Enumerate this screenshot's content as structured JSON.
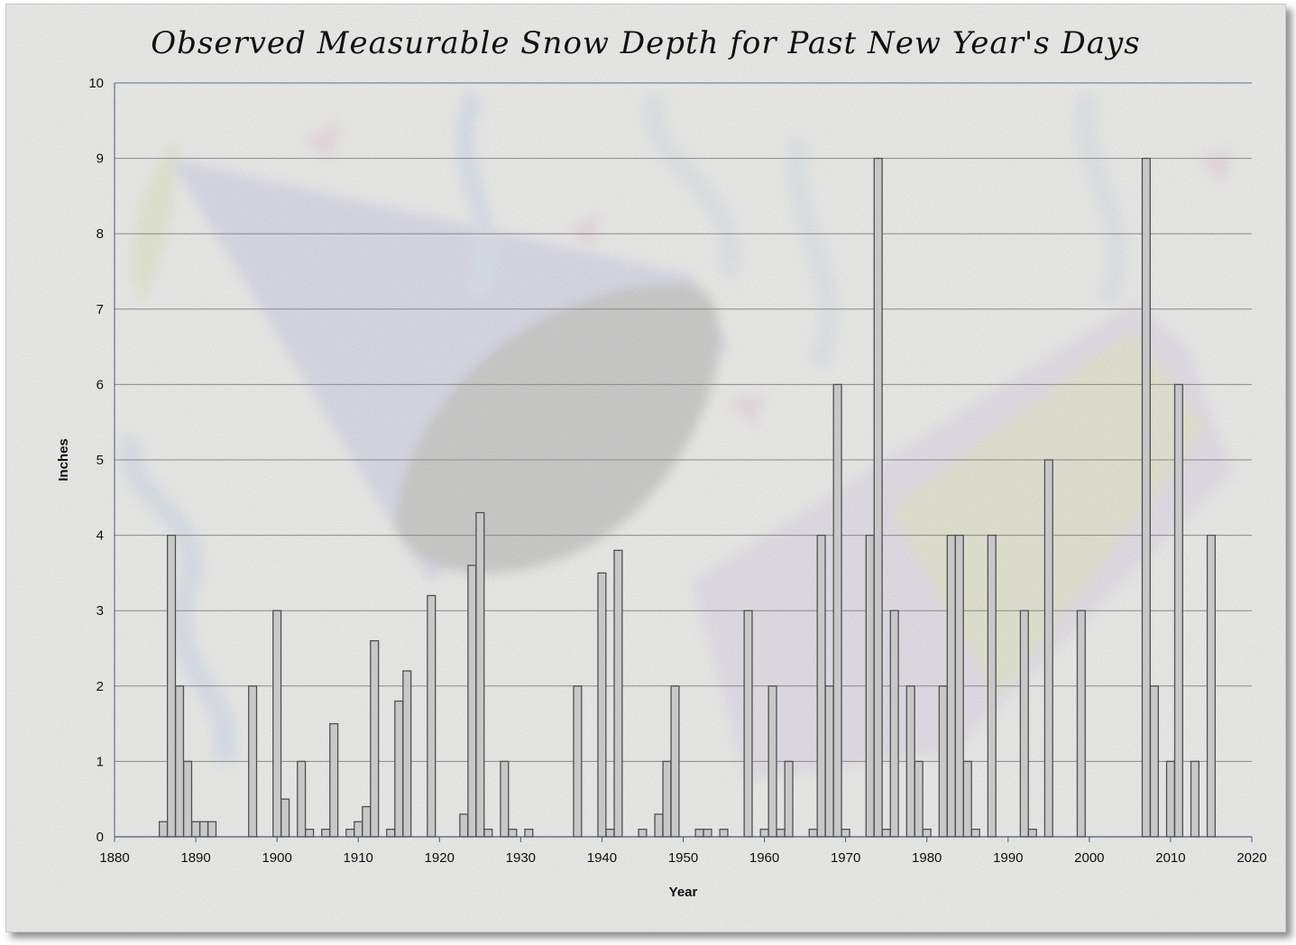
{
  "chart_data": {
    "type": "bar",
    "title": "Observed Measurable Snow Depth for Past New Year's Days",
    "xlabel": "Year",
    "ylabel": "Inches",
    "xlim": [
      1880,
      2020
    ],
    "ylim": [
      0,
      10
    ],
    "x_ticks": [
      1880,
      1890,
      1900,
      1910,
      1920,
      1930,
      1940,
      1950,
      1960,
      1970,
      1980,
      1990,
      2000,
      2010,
      2020
    ],
    "y_ticks": [
      0,
      1,
      2,
      3,
      4,
      5,
      6,
      7,
      8,
      9,
      10
    ],
    "grid": "horizontal",
    "legend": "none",
    "bar_color": "#c8c8c8",
    "bar_edge_color": "#505050",
    "series": [
      {
        "points": [
          {
            "x": 1886,
            "y": 0.2
          },
          {
            "x": 1887,
            "y": 4
          },
          {
            "x": 1888,
            "y": 2
          },
          {
            "x": 1889,
            "y": 1
          },
          {
            "x": 1890,
            "y": 0.2
          },
          {
            "x": 1891,
            "y": 0.2
          },
          {
            "x": 1892,
            "y": 0.2
          },
          {
            "x": 1897,
            "y": 2
          },
          {
            "x": 1900,
            "y": 3
          },
          {
            "x": 1901,
            "y": 0.5
          },
          {
            "x": 1903,
            "y": 1
          },
          {
            "x": 1904,
            "y": 0.1
          },
          {
            "x": 1906,
            "y": 0.1
          },
          {
            "x": 1907,
            "y": 1.5
          },
          {
            "x": 1909,
            "y": 0.1
          },
          {
            "x": 1910,
            "y": 0.2
          },
          {
            "x": 1911,
            "y": 0.4
          },
          {
            "x": 1912,
            "y": 2.6
          },
          {
            "x": 1914,
            "y": 0.1
          },
          {
            "x": 1915,
            "y": 1.8
          },
          {
            "x": 1916,
            "y": 2.2
          },
          {
            "x": 1919,
            "y": 3.2
          },
          {
            "x": 1923,
            "y": 0.3
          },
          {
            "x": 1924,
            "y": 3.6
          },
          {
            "x": 1925,
            "y": 4.3
          },
          {
            "x": 1926,
            "y": 0.1
          },
          {
            "x": 1928,
            "y": 1
          },
          {
            "x": 1929,
            "y": 0.1
          },
          {
            "x": 1931,
            "y": 0.1
          },
          {
            "x": 1937,
            "y": 2
          },
          {
            "x": 1940,
            "y": 3.5
          },
          {
            "x": 1941,
            "y": 0.1
          },
          {
            "x": 1942,
            "y": 3.8
          },
          {
            "x": 1945,
            "y": 0.1
          },
          {
            "x": 1947,
            "y": 0.3
          },
          {
            "x": 1948,
            "y": 1
          },
          {
            "x": 1949,
            "y": 2
          },
          {
            "x": 1952,
            "y": 0.1
          },
          {
            "x": 1953,
            "y": 0.1
          },
          {
            "x": 1955,
            "y": 0.1
          },
          {
            "x": 1958,
            "y": 3
          },
          {
            "x": 1960,
            "y": 0.1
          },
          {
            "x": 1961,
            "y": 2
          },
          {
            "x": 1962,
            "y": 0.1
          },
          {
            "x": 1963,
            "y": 1
          },
          {
            "x": 1966,
            "y": 0.1
          },
          {
            "x": 1967,
            "y": 4
          },
          {
            "x": 1968,
            "y": 2
          },
          {
            "x": 1969,
            "y": 6
          },
          {
            "x": 1970,
            "y": 0.1
          },
          {
            "x": 1973,
            "y": 4
          },
          {
            "x": 1974,
            "y": 9
          },
          {
            "x": 1975,
            "y": 0.1
          },
          {
            "x": 1976,
            "y": 3
          },
          {
            "x": 1978,
            "y": 2
          },
          {
            "x": 1979,
            "y": 1
          },
          {
            "x": 1980,
            "y": 0.1
          },
          {
            "x": 1982,
            "y": 2
          },
          {
            "x": 1983,
            "y": 4
          },
          {
            "x": 1984,
            "y": 4
          },
          {
            "x": 1985,
            "y": 1
          },
          {
            "x": 1986,
            "y": 0.1
          },
          {
            "x": 1988,
            "y": 4
          },
          {
            "x": 1992,
            "y": 3
          },
          {
            "x": 1993,
            "y": 0.1
          },
          {
            "x": 1995,
            "y": 5
          },
          {
            "x": 1999,
            "y": 3
          },
          {
            "x": 2007,
            "y": 9
          },
          {
            "x": 2008,
            "y": 2
          },
          {
            "x": 2010,
            "y": 1
          },
          {
            "x": 2011,
            "y": 6
          },
          {
            "x": 2013,
            "y": 1
          },
          {
            "x": 2015,
            "y": 4
          }
        ]
      }
    ]
  }
}
